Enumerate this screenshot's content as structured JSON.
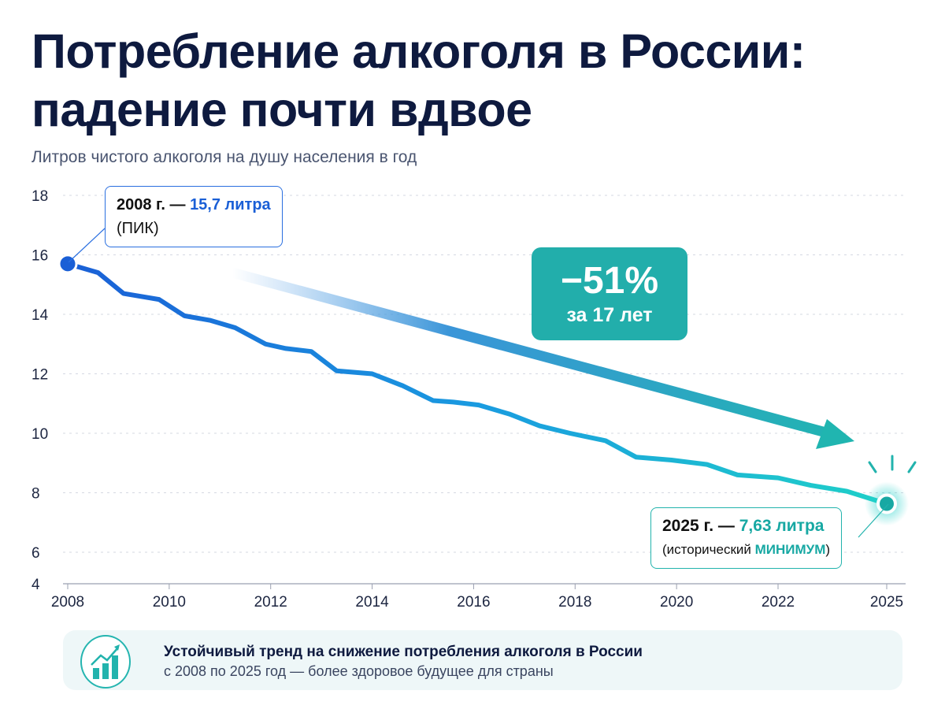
{
  "header": {
    "title_line1": "Потребление алкоголя в России:",
    "title_line2": "падение почти вдвое",
    "subtitle": "Литров чистого алкоголя на душу населения в год"
  },
  "chart_data": {
    "type": "line",
    "title": "Потребление алкоголя в России: падение почти вдвое",
    "ylabel": "Литров чистого алкоголя на душу населения в год",
    "xlabel": "",
    "ylim": [
      4,
      18
    ],
    "xlim": [
      2008,
      2025
    ],
    "yticks": [
      "18",
      "16",
      "14",
      "12",
      "10",
      "8",
      "6",
      "4"
    ],
    "xticks": [
      "2008",
      "2010",
      "2012",
      "2014",
      "2016",
      "2018",
      "2020",
      "2022",
      "2025"
    ],
    "grid": "horizontal dashed",
    "x": [
      2008.0,
      2008.6,
      2009.1,
      2009.8,
      2010.3,
      2010.8,
      2011.3,
      2011.9,
      2012.3,
      2012.8,
      2013.3,
      2014.0,
      2014.6,
      2015.2,
      2015.6,
      2016.1,
      2016.7,
      2017.3,
      2017.9,
      2018.6,
      2019.2,
      2019.9,
      2020.6,
      2021.2,
      2022.0,
      2022.9,
      2023.9,
      2025.0
    ],
    "values": [
      15.7,
      15.4,
      14.7,
      14.5,
      13.95,
      13.8,
      13.55,
      13.0,
      12.85,
      12.75,
      12.1,
      12.0,
      11.6,
      11.1,
      11.05,
      10.95,
      10.65,
      10.25,
      10.0,
      9.75,
      9.2,
      9.1,
      8.95,
      8.6,
      8.5,
      8.25,
      8.05,
      7.63
    ],
    "colors": {
      "start": "#1a5fd6",
      "end": "#1fc9c6"
    },
    "annotations": {
      "peak": {
        "year": "2008 г. —",
        "value": "15,7 литра",
        "note": "(ПИК)"
      },
      "min": {
        "year": "2025 г. —",
        "value": "7,63 литра",
        "note_prefix": "(исторический",
        "note_highlight": "МИНИМУМ",
        "note_suffix": ")"
      },
      "change": {
        "percent": "−51%",
        "period": "за 17 лет"
      }
    }
  },
  "footer": {
    "icon": "growth-chart-icon",
    "line1": "Устойчивый тренд на снижение потребления алкоголя в России",
    "line2": "с 2008 по 2025 год — более здоровое будущее для страны"
  }
}
